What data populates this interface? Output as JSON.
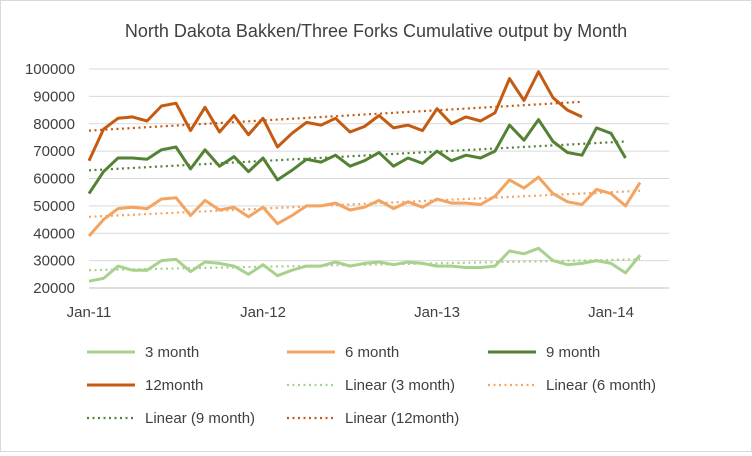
{
  "chart_data": {
    "type": "line",
    "title": "North Dakota Bakken/Three Forks Cumulative output by Month",
    "xlabel": "",
    "ylabel": "",
    "x_tick_labels": [
      {
        "label": "Jan-11",
        "month_index": 0
      },
      {
        "label": "Jan-12",
        "month_index": 12
      },
      {
        "label": "Jan-13",
        "month_index": 24
      },
      {
        "label": "Jan-14",
        "month_index": 36
      }
    ],
    "x_range_months": [
      0,
      40
    ],
    "y_ticks": [
      20000,
      30000,
      40000,
      50000,
      60000,
      70000,
      80000,
      90000,
      100000
    ],
    "y_tick_labels": [
      "20000",
      "30000",
      "40000",
      "50000",
      "60000",
      "70000",
      "80000",
      "90000",
      "100000"
    ],
    "ylim": [
      20000,
      100000
    ],
    "grid": true,
    "legend_position": "bottom",
    "series": [
      {
        "name": "3 month",
        "color": "#a9d18e",
        "style": "solid",
        "values": [
          22500,
          23500,
          28000,
          26500,
          26500,
          30000,
          30500,
          26000,
          29500,
          29000,
          28000,
          25000,
          28500,
          24500,
          26500,
          28000,
          28000,
          29500,
          28000,
          29000,
          29500,
          28500,
          29500,
          29000,
          28000,
          28000,
          27500,
          27500,
          28000,
          33500,
          32500,
          34500,
          30000,
          28500,
          29000,
          30000,
          29000,
          25500,
          32000
        ]
      },
      {
        "name": "6 month",
        "color": "#f4a461",
        "style": "solid",
        "values": [
          39000,
          45000,
          49000,
          49500,
          49000,
          52500,
          53000,
          46500,
          52000,
          48500,
          49500,
          46000,
          49500,
          43500,
          46500,
          50000,
          50000,
          51000,
          48500,
          49500,
          52000,
          49000,
          51500,
          49500,
          52500,
          51000,
          51000,
          50500,
          53500,
          59500,
          56500,
          60500,
          54500,
          51500,
          50500,
          56000,
          54500,
          50000,
          58500
        ]
      },
      {
        "name": "9 month",
        "color": "#548235",
        "style": "solid",
        "values": [
          54500,
          62500,
          67500,
          67500,
          67000,
          70500,
          71500,
          63500,
          70500,
          64500,
          68000,
          62500,
          67500,
          59500,
          63000,
          67000,
          66000,
          68500,
          64500,
          66500,
          69500,
          64500,
          67500,
          65500,
          70000,
          66500,
          68500,
          67500,
          70000,
          79500,
          74000,
          81500,
          73500,
          69500,
          68500,
          78500,
          76500,
          67500
        ]
      },
      {
        "name": "12month",
        "color": "#c55a11",
        "style": "solid",
        "values": [
          66500,
          78000,
          82000,
          82500,
          81000,
          86500,
          87500,
          77500,
          86000,
          77000,
          83000,
          76000,
          82000,
          71500,
          76500,
          80500,
          79500,
          82000,
          77000,
          79000,
          83000,
          78500,
          79500,
          77500,
          85500,
          80000,
          82500,
          81000,
          84000,
          96500,
          88500,
          99000,
          89500,
          85000,
          82500
        ]
      },
      {
        "name": "Linear (3 month)",
        "color": "#a9d18e",
        "style": "dotted",
        "trend_of": "3 month",
        "values": [
          26500,
          30500
        ]
      },
      {
        "name": "Linear (6 month)",
        "color": "#f4a461",
        "style": "dotted",
        "trend_of": "6 month",
        "values": [
          46000,
          55500
        ]
      },
      {
        "name": "Linear (9 month)",
        "color": "#548235",
        "style": "dotted",
        "trend_of": "9 month",
        "values": [
          63000,
          73500
        ]
      },
      {
        "name": "Linear (12month)",
        "color": "#c55a11",
        "style": "dotted",
        "trend_of": "12month",
        "values": [
          77500,
          88000
        ]
      }
    ]
  }
}
